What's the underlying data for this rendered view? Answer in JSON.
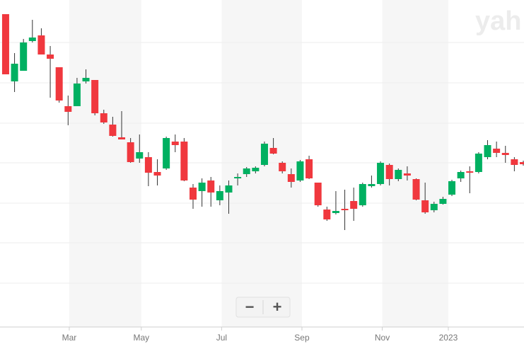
{
  "chart_data": {
    "type": "candlestick",
    "watermark": "yah",
    "zoom_out": "−",
    "zoom_in": "+",
    "x": [
      0,
      1,
      2,
      3,
      4,
      5,
      6,
      7,
      8,
      9,
      10,
      11,
      12,
      13,
      14,
      15,
      16,
      17,
      18,
      19,
      20,
      21,
      22,
      23,
      24,
      25,
      26,
      27,
      28,
      29,
      30,
      31,
      32,
      33,
      34,
      35,
      36,
      37,
      38,
      39,
      40,
      41,
      42,
      43,
      44,
      45,
      46,
      47,
      48,
      49,
      50,
      51,
      52,
      53,
      54,
      55,
      56,
      57,
      58
    ],
    "open": [
      440,
      345,
      360,
      402,
      410,
      383,
      365,
      310,
      310,
      345,
      347,
      300,
      284,
      266,
      259,
      236,
      238,
      217,
      222,
      260,
      260,
      195,
      190,
      205,
      177,
      188,
      208,
      214,
      218,
      227,
      251,
      230,
      214,
      205,
      235,
      202,
      164,
      159,
      165,
      176,
      170,
      197,
      200,
      227,
      207,
      215,
      207,
      177,
      163,
      172,
      185,
      208,
      218,
      217,
      238,
      250,
      244,
      235,
      231
    ],
    "high": [
      440,
      385,
      405,
      432,
      420,
      395,
      365,
      325,
      350,
      362,
      347,
      305,
      295,
      303,
      265,
      270,
      245,
      235,
      267,
      270,
      265,
      200,
      208,
      210,
      198,
      205,
      215,
      224,
      225,
      260,
      265,
      232,
      222,
      234,
      240,
      202,
      168,
      190,
      192,
      195,
      202,
      212,
      232,
      229,
      222,
      225,
      208,
      202,
      175,
      182,
      206,
      219,
      225,
      245,
      262,
      260,
      254,
      238,
      233
    ],
    "low": [
      355,
      330,
      360,
      400,
      383,
      322,
      315,
      283,
      310,
      342,
      297,
      285,
      267,
      263,
      230,
      230,
      197,
      198,
      220,
      245,
      204,
      165,
      168,
      168,
      170,
      158,
      198,
      210,
      215,
      225,
      242,
      215,
      195,
      203,
      207,
      168,
      148,
      157,
      135,
      148,
      168,
      195,
      198,
      198,
      204,
      205,
      177,
      158,
      160,
      171,
      183,
      203,
      187,
      215,
      235,
      238,
      230,
      218,
      226
    ],
    "close": [
      355,
      370,
      400,
      407,
      383,
      377,
      318,
      302,
      342,
      350,
      300,
      287,
      268,
      263,
      231,
      245,
      216,
      212,
      265,
      255,
      205,
      178,
      202,
      188,
      190,
      198,
      210,
      222,
      223,
      257,
      243,
      218,
      203,
      232,
      208,
      170,
      150,
      162,
      163,
      165,
      200,
      200,
      230,
      207,
      220,
      212,
      178,
      160,
      172,
      179,
      204,
      217,
      216,
      243,
      255,
      244,
      241,
      227,
      228
    ],
    "up_color": "#00b061",
    "down_color": "#f0383e",
    "xlim": [
      -0.63,
      58.08
    ],
    "ylim": [
      0,
      460
    ],
    "xticks": [
      {
        "value": 7.13,
        "label": "Mar"
      },
      {
        "value": 15.2,
        "label": "May"
      },
      {
        "value": 24.2,
        "label": "Jul"
      },
      {
        "value": 33.2,
        "label": "Sep"
      },
      {
        "value": 42.2,
        "label": "Nov"
      },
      {
        "value": 49.6,
        "label": "2023"
      }
    ]
  }
}
